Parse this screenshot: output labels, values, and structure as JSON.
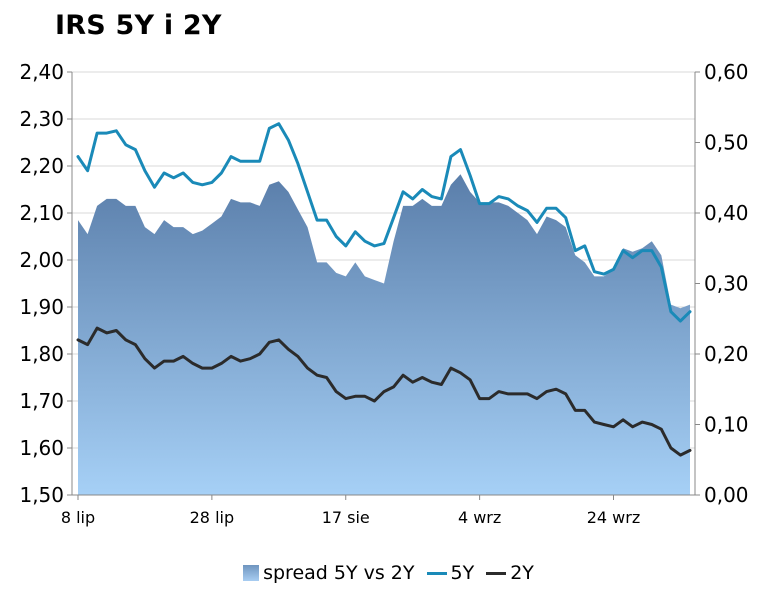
{
  "chart_data": {
    "type": "area+line",
    "title": "IRS 5Y i 2Y",
    "left_axis": {
      "min": 1.5,
      "max": 2.4,
      "ticks": [
        "1,50",
        "1,60",
        "1,70",
        "1,80",
        "1,90",
        "2,00",
        "2,10",
        "2,20",
        "2,30",
        "2,40"
      ]
    },
    "right_axis": {
      "min": 0.0,
      "max": 0.6,
      "ticks": [
        "0,00",
        "0,10",
        "0,20",
        "0,30",
        "0,40",
        "0,50",
        "0,60"
      ]
    },
    "x_tick_labels": [
      {
        "label": "8 lip",
        "index": 0
      },
      {
        "label": "28 lip",
        "index": 14
      },
      {
        "label": "17 sie",
        "index": 28
      },
      {
        "label": "4 wrz",
        "index": 42
      },
      {
        "label": "24 wrz",
        "index": 56
      }
    ],
    "series": [
      {
        "name": "spread 5Y vs 2Y",
        "type": "area",
        "axis": "right",
        "values": [
          0.39,
          0.37,
          0.41,
          0.42,
          0.42,
          0.41,
          0.41,
          0.38,
          0.37,
          0.39,
          0.38,
          0.38,
          0.37,
          0.375,
          0.385,
          0.395,
          0.42,
          0.415,
          0.415,
          0.41,
          0.44,
          0.445,
          0.43,
          0.405,
          0.38,
          0.33,
          0.33,
          0.315,
          0.31,
          0.33,
          0.31,
          0.305,
          0.3,
          0.36,
          0.41,
          0.41,
          0.42,
          0.41,
          0.41,
          0.44,
          0.455,
          0.43,
          0.415,
          0.415,
          0.415,
          0.41,
          0.4,
          0.39,
          0.37,
          0.395,
          0.39,
          0.38,
          0.34,
          0.33,
          0.31,
          0.31,
          0.32,
          0.35,
          0.345,
          0.35,
          0.36,
          0.34,
          0.27,
          0.265,
          0.27
        ]
      },
      {
        "name": "5Y",
        "type": "line",
        "axis": "left",
        "color": "#1a8ab8",
        "values": [
          2.22,
          2.19,
          2.27,
          2.27,
          2.275,
          2.245,
          2.235,
          2.19,
          2.155,
          2.185,
          2.175,
          2.185,
          2.165,
          2.16,
          2.165,
          2.185,
          2.22,
          2.21,
          2.21,
          2.21,
          2.28,
          2.29,
          2.255,
          2.205,
          2.145,
          2.085,
          2.085,
          2.05,
          2.03,
          2.06,
          2.04,
          2.03,
          2.035,
          2.09,
          2.145,
          2.13,
          2.15,
          2.135,
          2.13,
          2.22,
          2.235,
          2.18,
          2.12,
          2.12,
          2.135,
          2.13,
          2.115,
          2.105,
          2.08,
          2.11,
          2.11,
          2.09,
          2.02,
          2.03,
          1.975,
          1.97,
          1.98,
          2.02,
          2.005,
          2.02,
          2.02,
          1.985,
          1.89,
          1.87,
          1.89
        ]
      },
      {
        "name": "2Y",
        "type": "line",
        "axis": "left",
        "color": "#2b2b2b",
        "values": [
          1.83,
          1.82,
          1.855,
          1.845,
          1.85,
          1.83,
          1.82,
          1.79,
          1.77,
          1.785,
          1.785,
          1.795,
          1.78,
          1.77,
          1.77,
          1.78,
          1.795,
          1.785,
          1.79,
          1.8,
          1.825,
          1.83,
          1.81,
          1.795,
          1.77,
          1.755,
          1.75,
          1.72,
          1.705,
          1.71,
          1.71,
          1.7,
          1.72,
          1.73,
          1.755,
          1.74,
          1.75,
          1.74,
          1.735,
          1.77,
          1.76,
          1.745,
          1.705,
          1.705,
          1.72,
          1.715,
          1.715,
          1.715,
          1.705,
          1.72,
          1.725,
          1.715,
          1.68,
          1.68,
          1.655,
          1.65,
          1.645,
          1.66,
          1.645,
          1.655,
          1.65,
          1.64,
          1.6,
          1.585,
          1.595
        ]
      }
    ],
    "legend": [
      {
        "name": "spread 5Y vs 2Y",
        "kind": "area"
      },
      {
        "name": "5Y",
        "kind": "line",
        "color": "#1a8ab8"
      },
      {
        "name": "2Y",
        "kind": "line",
        "color": "#2b2b2b"
      }
    ]
  }
}
